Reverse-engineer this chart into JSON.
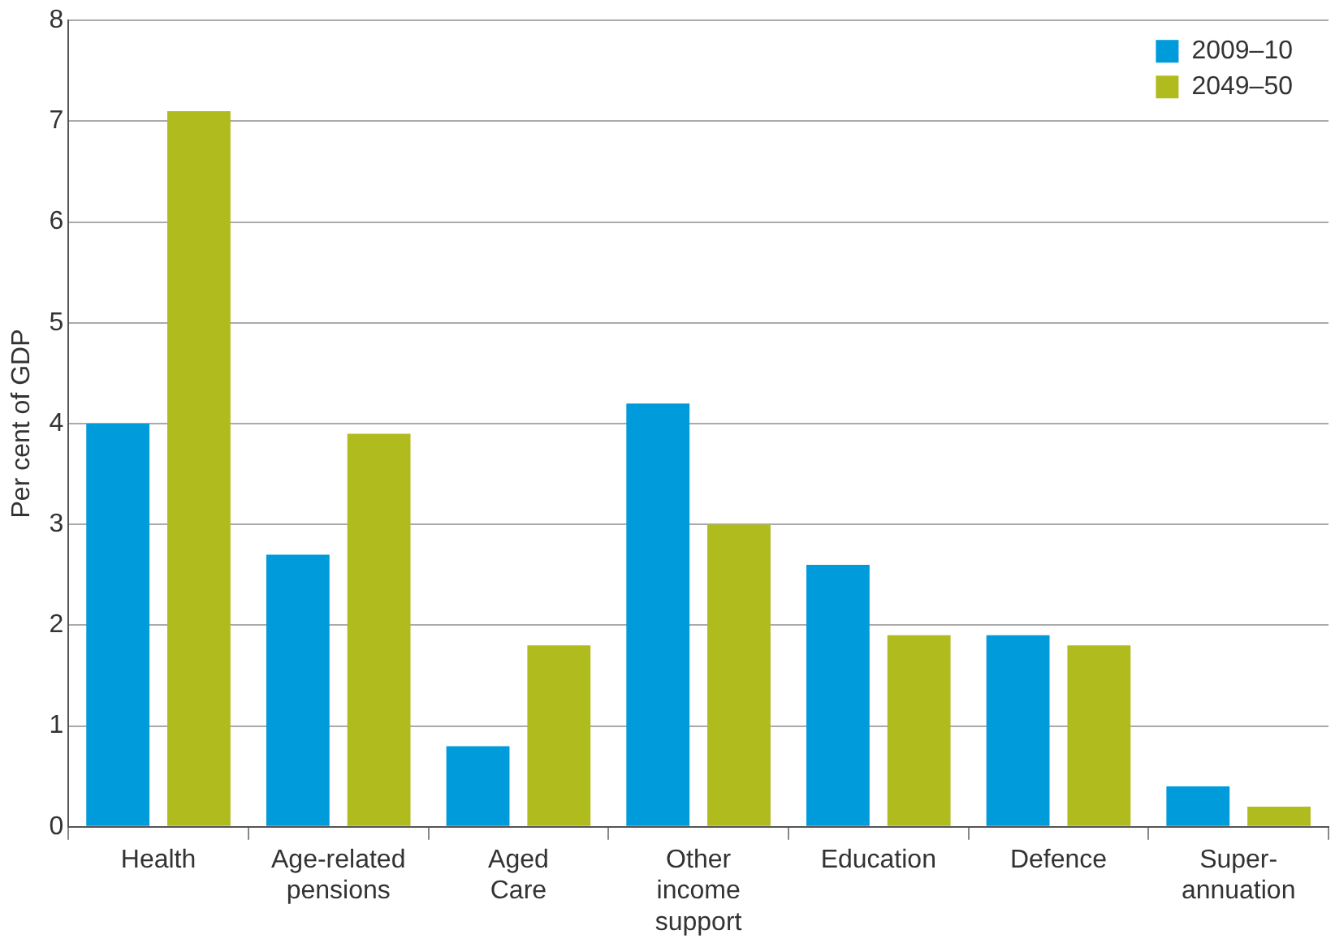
{
  "chart_data": {
    "type": "bar",
    "ylabel": "Per cent of GDP",
    "categories": [
      "Health",
      "Age-related pensions",
      "Aged Care",
      "Other income support",
      "Education",
      "Defence",
      "Super-annuation"
    ],
    "series": [
      {
        "name": "2009–10",
        "color": "#009bdb",
        "values": [
          4.0,
          2.7,
          0.8,
          4.2,
          2.6,
          1.9,
          0.4
        ]
      },
      {
        "name": "2049–50",
        "color": "#b0bb1e",
        "values": [
          7.1,
          3.9,
          1.8,
          3.0,
          1.9,
          1.8,
          0.2
        ]
      }
    ],
    "ylim": [
      0,
      8
    ],
    "yticks": [
      0,
      1,
      2,
      3,
      4,
      5,
      6,
      7,
      8
    ],
    "grid": "y",
    "legend": "top right"
  }
}
